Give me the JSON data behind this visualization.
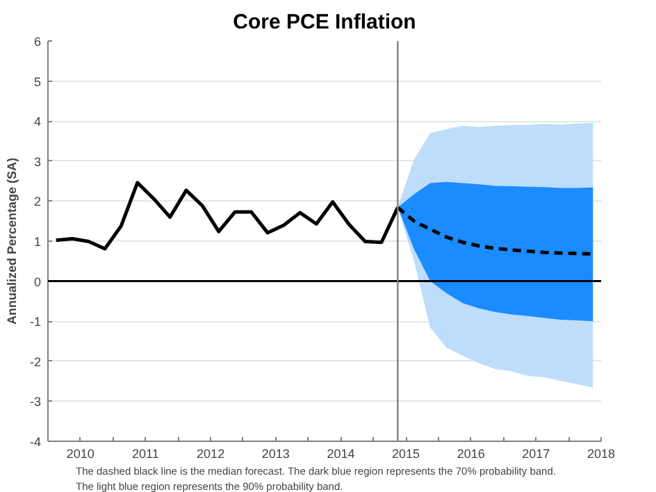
{
  "chart_data": {
    "type": "line",
    "title": "Core PCE Inflation",
    "ylabel": "Annualized Percentage (SA)",
    "xlim": [
      2009.5,
      2018
    ],
    "ylim": [
      -4,
      6
    ],
    "xticks": [
      2010,
      {
        "value": 2010.5,
        "label": null
      },
      2011,
      {
        "value": 2011.5,
        "label": null
      },
      2012,
      {
        "value": 2012.5,
        "label": null
      },
      2013,
      {
        "value": 2013.5,
        "label": null
      },
      2014,
      {
        "value": 2014.5,
        "label": null
      },
      2015,
      {
        "value": 2015.5,
        "label": null
      },
      2016,
      {
        "value": 2016.5,
        "label": null
      },
      2017,
      {
        "value": 2017.5,
        "label": null
      },
      2018
    ],
    "yticks": [
      -4,
      -3,
      -2,
      -1,
      0,
      1,
      2,
      3,
      4,
      5,
      6
    ],
    "grid": "y",
    "marker": "none",
    "series": [
      {
        "color": "#bdddfb",
        "x": [
          2014.875,
          2015.125,
          2015.375,
          2015.625,
          2015.875,
          2016.125,
          2016.375,
          2016.625,
          2016.875,
          2017.125,
          2017.375,
          2017.625,
          2017.875
        ],
        "values": [
          null,
          null,
          null,
          null,
          null,
          null,
          null,
          null,
          null,
          null,
          null,
          null,
          null
        ],
        "lower": [
          1.84,
          0.5,
          -1.16,
          -1.66,
          -1.87,
          -2.05,
          -2.2,
          -2.25,
          -2.37,
          -2.4,
          -2.49,
          -2.57,
          -2.66
        ],
        "upper": [
          1.84,
          3.04,
          3.7,
          3.8,
          3.88,
          3.85,
          3.88,
          3.9,
          3.9,
          3.93,
          3.91,
          3.94,
          3.95
        ]
      },
      {
        "color": "#1a8cff",
        "x": [
          2014.875,
          2015.125,
          2015.375,
          2015.625,
          2015.875,
          2016.125,
          2016.375,
          2016.625,
          2016.875,
          2017.125,
          2017.375,
          2017.625,
          2017.875
        ],
        "values": [
          null,
          null,
          null,
          null,
          null,
          null,
          null,
          null,
          null,
          null,
          null,
          null,
          null
        ],
        "lower": [
          1.84,
          0.8,
          0.0,
          -0.3,
          -0.55,
          -0.68,
          -0.77,
          -0.83,
          -0.87,
          -0.92,
          -0.96,
          -0.98,
          -1.0
        ],
        "upper": [
          1.84,
          2.17,
          2.45,
          2.48,
          2.45,
          2.42,
          2.38,
          2.37,
          2.36,
          2.35,
          2.33,
          2.33,
          2.34
        ]
      },
      {
        "color": "#000000",
        "line_style": "solid",
        "x": [
          2009.625,
          2009.875,
          2010.125,
          2010.375,
          2010.625,
          2010.875,
          2011.125,
          2011.375,
          2011.625,
          2011.875,
          2012.125,
          2012.375,
          2012.625,
          2012.875,
          2013.125,
          2013.375,
          2013.625,
          2013.875,
          2014.125,
          2014.375,
          2014.625,
          2014.875
        ],
        "values": [
          1.02,
          1.06,
          0.99,
          0.81,
          1.38,
          2.46,
          2.06,
          1.6,
          2.27,
          1.88,
          1.24,
          1.73,
          1.73,
          1.21,
          1.4,
          1.71,
          1.43,
          1.98,
          1.42,
          0.99,
          0.97,
          1.84
        ]
      },
      {
        "color": "#000000",
        "line_style": "dashed",
        "x": [
          2014.875,
          2015.125,
          2015.375,
          2015.625,
          2015.875,
          2016.125,
          2016.375,
          2016.625,
          2016.875,
          2017.125,
          2017.375,
          2017.625,
          2017.875
        ],
        "values": [
          1.84,
          1.5,
          1.3,
          1.1,
          0.97,
          0.88,
          0.82,
          0.78,
          0.75,
          0.72,
          0.7,
          0.69,
          0.68
        ]
      }
    ],
    "ref_lines": [
      {
        "axis": "y",
        "value": 0,
        "color": "#000000"
      },
      {
        "axis": "x",
        "value": 2014.875,
        "color": "#808080"
      }
    ],
    "annotations": [
      "The dashed black line is the median forecast. The dark blue region represents the 70% probability band.",
      "The light blue region represents the 90% probability band."
    ]
  }
}
